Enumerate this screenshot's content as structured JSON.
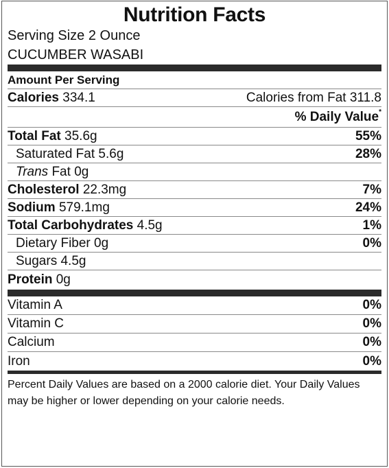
{
  "title": "Nutrition Facts",
  "serving_size": "Serving Size 2 Ounce",
  "food_name": "CUCUMBER WASABI",
  "amount_per_serving": "Amount Per Serving",
  "calories": {
    "label": "Calories",
    "value": "334.1"
  },
  "calories_from_fat": "Calories from Fat 311.8",
  "daily_value_header": "% Daily Value",
  "daily_value_mark": "*",
  "nutrients": {
    "total_fat": {
      "label": "Total Fat",
      "amount": "35.6g",
      "pct": "55%"
    },
    "saturated_fat": {
      "label": "Saturated Fat",
      "amount": "5.6g",
      "pct": "28%"
    },
    "trans_fat": {
      "label": "Trans",
      "suffix": "Fat",
      "amount": "0g"
    },
    "cholesterol": {
      "label": "Cholesterol",
      "amount": "22.3mg",
      "pct": "7%"
    },
    "sodium": {
      "label": "Sodium",
      "amount": "579.1mg",
      "pct": "24%"
    },
    "total_carbs": {
      "label": "Total Carbohydrates",
      "amount": "4.5g",
      "pct": "1%"
    },
    "dietary_fiber": {
      "label": "Dietary Fiber",
      "amount": "0g",
      "pct": "0%"
    },
    "sugars": {
      "label": "Sugars",
      "amount": "4.5g"
    },
    "protein": {
      "label": "Protein",
      "amount": "0g"
    }
  },
  "vitamins": [
    {
      "label": "Vitamin A",
      "pct": "0%"
    },
    {
      "label": "Vitamin C",
      "pct": "0%"
    },
    {
      "label": "Calcium",
      "pct": "0%"
    },
    {
      "label": "Iron",
      "pct": "0%"
    }
  ],
  "footnote": "Percent Daily Values are based on a 2000 calorie diet. Your Daily Values may be higher or lower depending on your calorie needs."
}
